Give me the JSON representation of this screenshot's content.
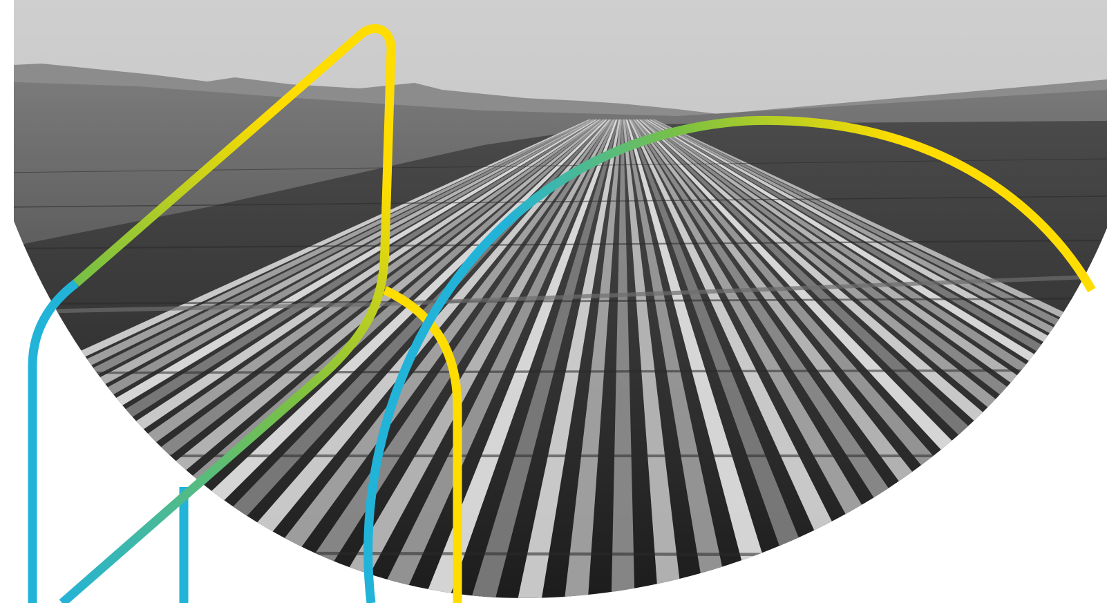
{
  "scene": {
    "photo_subject": "solar-farm",
    "photo_tone": "grayscale",
    "colors": {
      "background": "#ffffff",
      "sky_top": "#c9c9c9",
      "sky_horizon": "#b8b8b8",
      "mountains": "#8a8a8a",
      "scrubland": "#6b6b6b",
      "ground_far": "#3c3c3c",
      "ground_near": "#1e1e1e",
      "panel_light": "#d2d2d2",
      "panel_mid": "#9a9a9a",
      "panel_dark": "#5a5a5a",
      "line_blue": "#22b3d9",
      "line_green": "#7bc142",
      "line_yellow": "#ffdd00"
    }
  },
  "decorations": {
    "lines": [
      {
        "name": "blue-left-arch",
        "color_stops": [
          "#22b3d9"
        ]
      },
      {
        "name": "blue-short-post",
        "color_stops": [
          "#22b3d9"
        ]
      },
      {
        "name": "gradient-diagonal-hook",
        "color_stops": [
          "#22b3d9",
          "#7bc142",
          "#ffdd00"
        ]
      },
      {
        "name": "yellow-right-arch",
        "color_stops": [
          "#ffdd00"
        ]
      },
      {
        "name": "gradient-big-arc",
        "color_stops": [
          "#22b3d9",
          "#7bc142",
          "#ffdd00"
        ]
      }
    ]
  }
}
